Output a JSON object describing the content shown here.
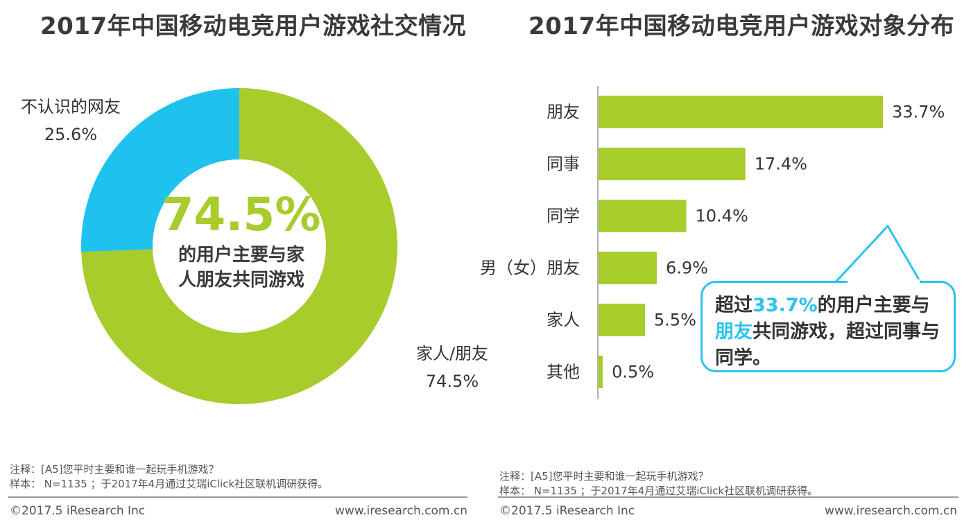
{
  "left_title": "2017年中国移动电竞用户游戏社交情况",
  "right_title": "2017年中国移动电竞用户游戏对象分布",
  "center": {
    "big": "74.5%",
    "line1": "的用户主要与家",
    "line2": "人朋友共同游戏"
  },
  "callout": {
    "p1": "超过",
    "hl1": "33.7%",
    "p2": "的用户主要与",
    "hl2": "朋友",
    "p3": "共同游戏，超过同事与同学。"
  },
  "notes": {
    "note1": "注释：[A5]您平时主要和谁一起玩手机游戏？",
    "sample": "样本： N=1135 ；于2017年4月通过艾瑞iClick社区联机调研获得。"
  },
  "footer": {
    "copyright": "©2017.5 iResearch Inc",
    "url": "www.iresearch.com.cn"
  },
  "colors": {
    "green": "#a8cc2c",
    "blue": "#1fc2ee",
    "accent": "#29c3ee"
  },
  "chart_data": [
    {
      "type": "pie",
      "title": "2017年中国移动电竞用户游戏社交情况",
      "categories": [
        "家人/朋友",
        "不认识的网友"
      ],
      "values": [
        74.5,
        25.6
      ],
      "value_labels": [
        "74.5%",
        "25.6%"
      ]
    },
    {
      "type": "bar",
      "orientation": "horizontal",
      "title": "2017年中国移动电竞用户游戏对象分布",
      "categories": [
        "朋友",
        "同事",
        "同学",
        "男（女）朋友",
        "家人",
        "其他"
      ],
      "values": [
        33.7,
        17.4,
        10.4,
        6.9,
        5.5,
        0.5
      ],
      "value_labels": [
        "33.7%",
        "17.4%",
        "10.4%",
        "6.9%",
        "5.5%",
        "0.5%"
      ],
      "xlim": [
        0,
        33.7
      ]
    }
  ]
}
